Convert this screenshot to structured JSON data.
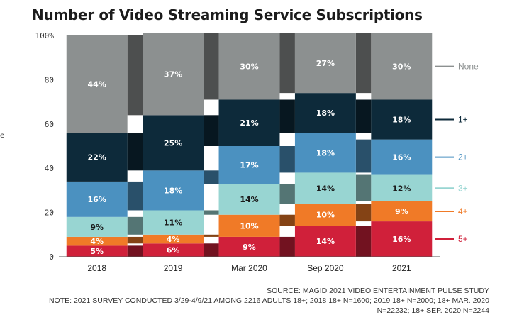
{
  "title": "Number of Video Streaming Service Subscriptions",
  "chart_data": {
    "type": "bar",
    "stacked": true,
    "title": "Number of Video Streaming Service Subscriptions",
    "xlabel": "",
    "ylabel": "",
    "ylim": [
      0,
      100
    ],
    "yticks": [
      "0",
      "20",
      "40",
      "60",
      "80",
      "100%"
    ],
    "categories": [
      "2018",
      "2019",
      "Mar 2020",
      "Sep 2020",
      "2021"
    ],
    "series": [
      {
        "name": "5+",
        "color": "#d0203a",
        "label_color": "#ffffff",
        "values": [
          5,
          6,
          9,
          14,
          16
        ]
      },
      {
        "name": "4+",
        "color": "#f07a27",
        "label_color": "#ffffff",
        "values": [
          4,
          4,
          10,
          10,
          9
        ]
      },
      {
        "name": "3+",
        "color": "#98d5d2",
        "label_color": "#1a1a1a",
        "values": [
          9,
          11,
          14,
          14,
          12
        ]
      },
      {
        "name": "2+",
        "color": "#4b91c0",
        "label_color": "#ffffff",
        "values": [
          16,
          18,
          17,
          18,
          16
        ]
      },
      {
        "name": "1+",
        "color": "#0d2a3a",
        "label_color": "#ffffff",
        "values": [
          22,
          25,
          21,
          18,
          18
        ]
      },
      {
        "name": "None",
        "color": "#8c9090",
        "label_color": "#ffffff",
        "values": [
          44,
          37,
          30,
          27,
          30
        ]
      }
    ],
    "data_labels": [
      [
        "5%",
        "6%",
        "9%",
        "14%",
        "16%"
      ],
      [
        "4%",
        "4%",
        "10%",
        "10%",
        "9%"
      ],
      [
        "9%",
        "11%",
        "14%",
        "14%",
        "12%"
      ],
      [
        "16%",
        "18%",
        "17%",
        "18%",
        "16%"
      ],
      [
        "22%",
        "25%",
        "21%",
        "18%",
        "18%"
      ],
      [
        "44%",
        "37%",
        "30%",
        "27%",
        "30%"
      ]
    ],
    "legend": "right",
    "grid": false
  },
  "notes": {
    "source": "SOURCE: MAGID 2021 VIDEO ENTERTAINMENT PULSE STUDY",
    "note": "NOTE: 2021 SURVEY CONDUCTED 3/29-4/9/21 AMONG 2216 ADULTS 18+; 2018 18+ N=1600; 2019 18+ N=2000; 18+ MAR. 2020 N=22232; 18+ SEP. 2020 N=2244"
  },
  "stray_char": "e"
}
